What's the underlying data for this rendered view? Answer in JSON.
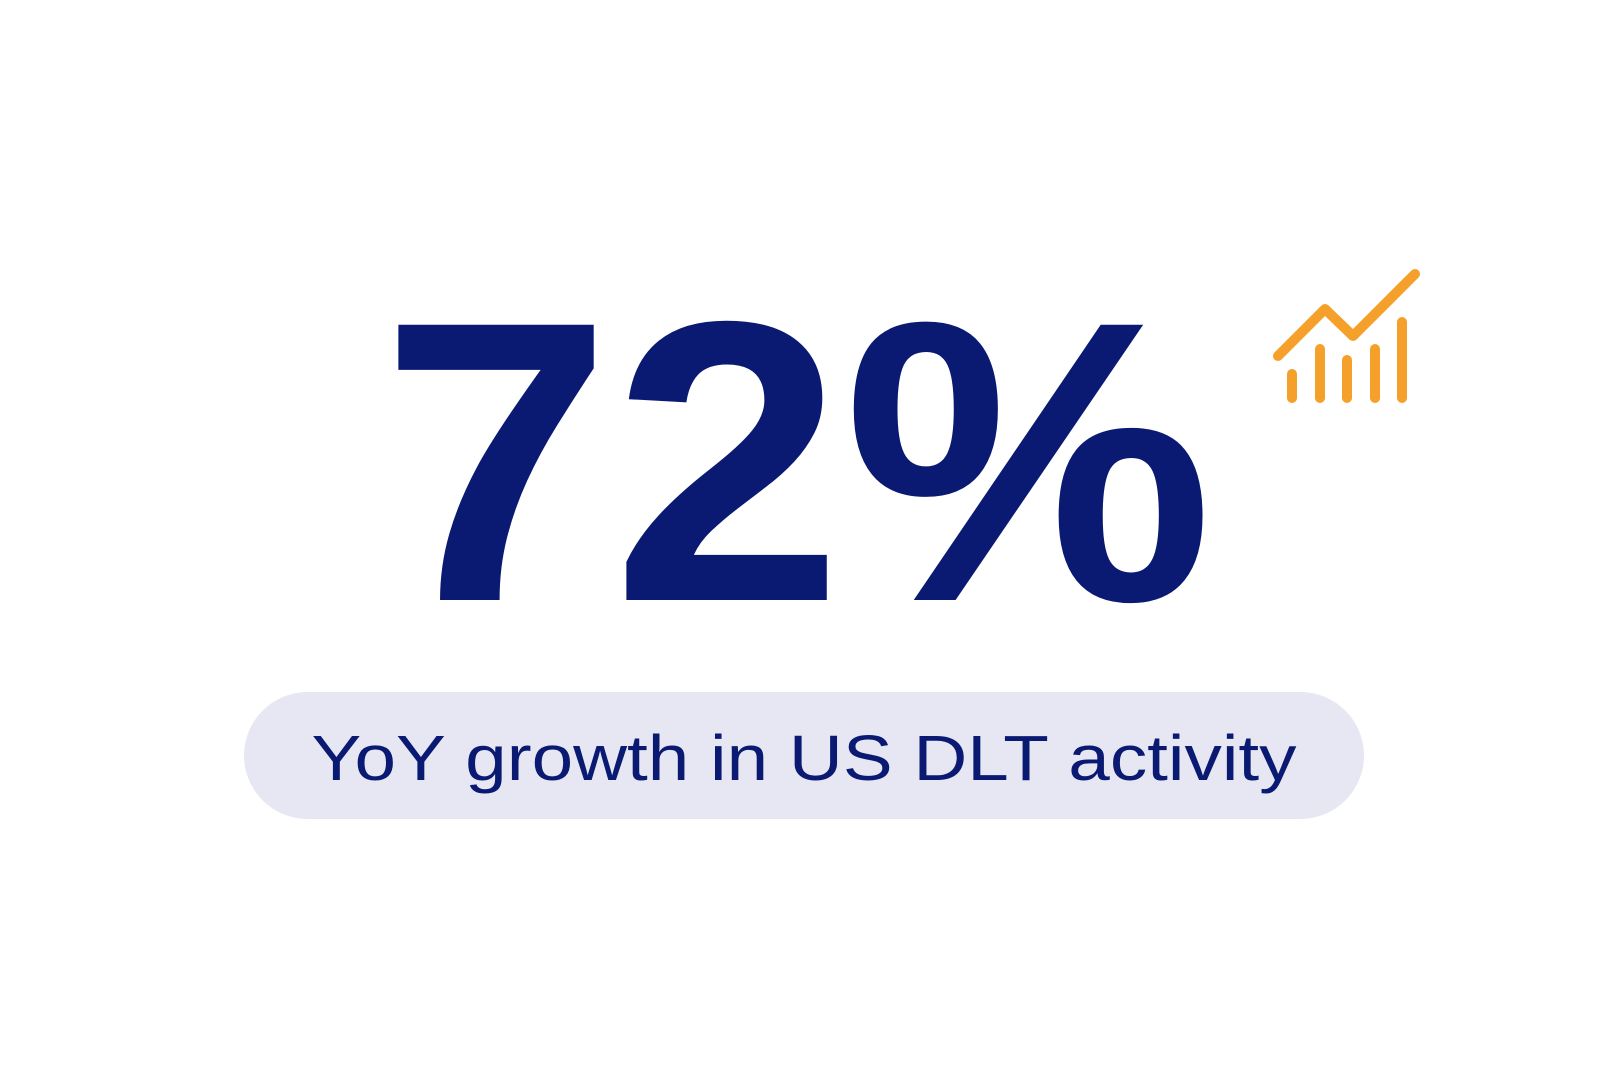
{
  "stat": {
    "value": "72%",
    "caption": "YoY growth in US DLT activity"
  }
}
